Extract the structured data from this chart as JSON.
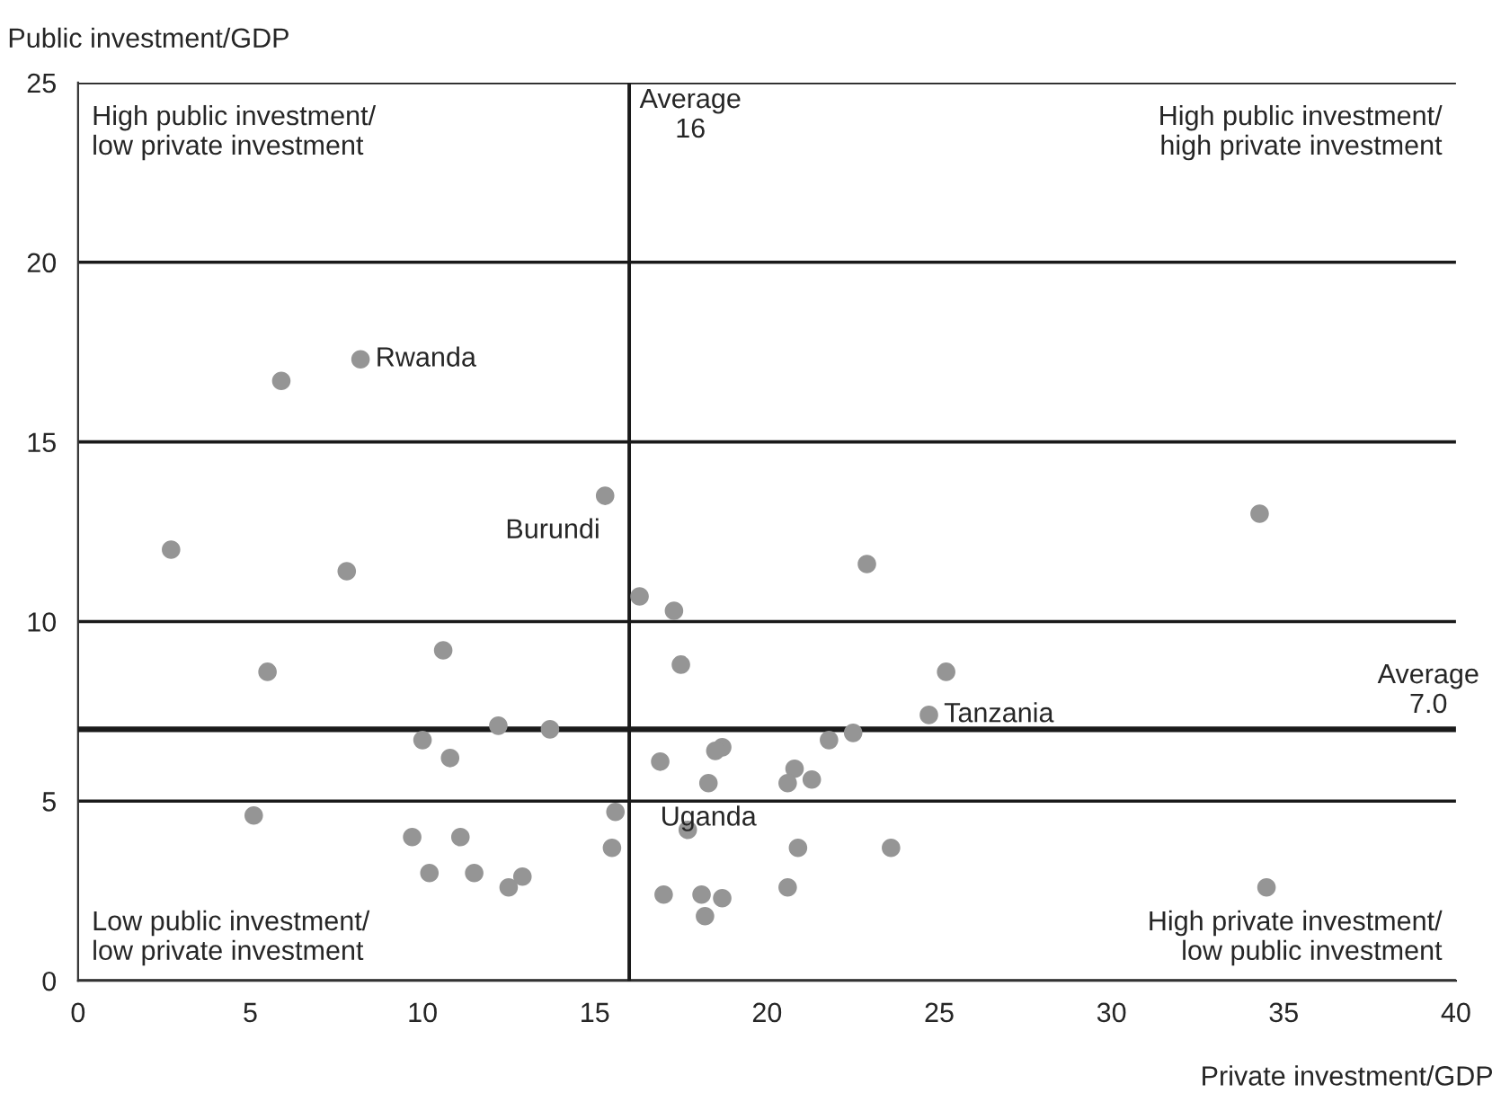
{
  "chart_data": {
    "type": "scatter",
    "xlabel": "Private investment/GDP",
    "ylabel": "Public investment/GDP",
    "xlim": [
      0,
      40
    ],
    "ylim": [
      0,
      25
    ],
    "xticks": [
      0,
      5,
      10,
      15,
      20,
      25,
      30,
      35,
      40
    ],
    "yticks": [
      0,
      5,
      10,
      15,
      20,
      25
    ],
    "grid": "y",
    "marker": "circle",
    "series": [
      {
        "color": "#959595",
        "x": [
          8.2,
          5.9,
          15.3,
          2.7,
          7.8,
          16.3,
          10.6,
          5.5,
          12.2,
          13.7,
          10.0,
          10.8,
          5.1,
          15.6,
          9.7,
          11.1,
          15.5,
          10.2,
          11.5,
          12.5,
          12.9,
          17.3,
          22.9,
          17.5,
          25.2,
          24.7,
          22.5,
          21.8,
          18.7,
          18.5,
          16.9,
          20.8,
          20.6,
          21.3,
          18.3,
          17.7,
          20.9,
          23.6,
          17.0,
          18.1,
          18.7,
          18.2,
          20.6,
          34.3,
          34.5
        ],
        "values": [
          17.3,
          16.7,
          13.5,
          12.0,
          11.4,
          10.7,
          9.2,
          8.6,
          7.1,
          7.0,
          6.7,
          6.2,
          4.6,
          4.7,
          4.0,
          4.0,
          3.7,
          3.0,
          3.0,
          2.6,
          2.9,
          10.3,
          11.6,
          8.8,
          8.6,
          7.4,
          6.9,
          6.7,
          6.5,
          6.4,
          6.1,
          5.9,
          5.5,
          5.6,
          5.5,
          4.2,
          3.7,
          3.7,
          2.4,
          2.4,
          2.3,
          1.8,
          2.6,
          13.0,
          2.6
        ]
      }
    ],
    "ref_lines": [
      {
        "axis": "x",
        "value": 16,
        "label": "Average\n16",
        "color": "#1a1a1a"
      },
      {
        "axis": "y",
        "value": 7.0,
        "label": "Average\n7.0",
        "color": "#1a1a1a"
      }
    ],
    "annotations": [
      {
        "text": "Rwanda",
        "x": 8.2,
        "y": 17.3
      },
      {
        "text": "Burundi",
        "x": 15.3,
        "y": 13.5
      },
      {
        "text": "Tanzania",
        "x": 24.7,
        "y": 7.4
      },
      {
        "text": "Uganda",
        "x": 18.3,
        "y": 5.5
      },
      "High public investment/\nlow private investment",
      "High public investment/\nhigh private investment",
      "Low public investment/\nlow private investment",
      "High private investment/\nlow public investment"
    ]
  }
}
